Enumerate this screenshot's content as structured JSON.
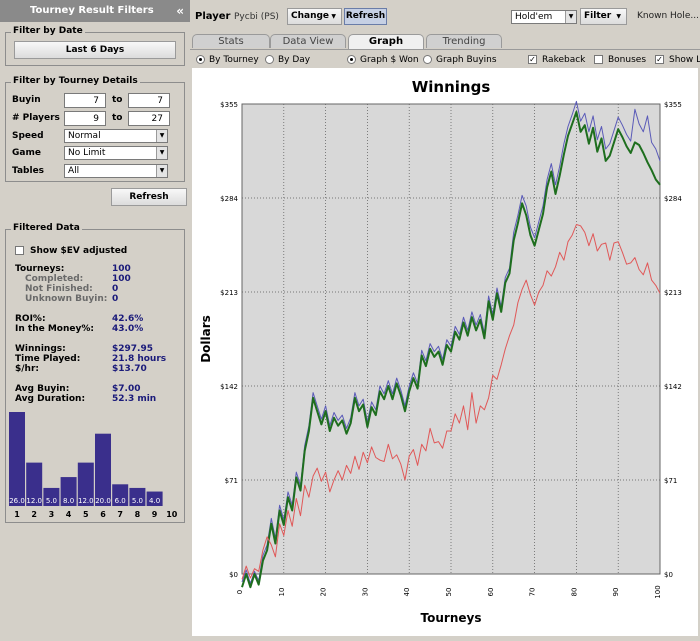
{
  "left_panel": {
    "title": "Tourney Result Filters",
    "collapse": "«",
    "filter_by_date": {
      "title": "Filter by Date",
      "button": "Last 6 Days"
    },
    "filter_by_details": {
      "title": "Filter by Tourney Details",
      "buyin": {
        "label": "Buyin",
        "from": "7",
        "to_label": "to",
        "to": "7"
      },
      "players": {
        "label": "# Players",
        "from": "9",
        "to_label": "to",
        "to": "27"
      },
      "speed": {
        "label": "Speed",
        "value": "Normal"
      },
      "game": {
        "label": "Game",
        "value": "No Limit"
      },
      "tables": {
        "label": "Tables",
        "value": "All"
      }
    },
    "refresh_button": "Refresh",
    "filtered_data": {
      "title": "Filtered Data",
      "ev_label": "Show $EV adjusted",
      "stats": [
        {
          "label": "Tourneys:",
          "value": "100",
          "sub": false
        },
        {
          "label": "Completed:",
          "value": "100",
          "sub": true
        },
        {
          "label": "Not Finished:",
          "value": "0",
          "sub": true
        },
        {
          "label": "Unknown Buyin:",
          "value": "0",
          "sub": true
        },
        {
          "label": "ROI%:",
          "value": "42.6%",
          "sub": false
        },
        {
          "label": "In the Money%:",
          "value": "43.0%",
          "sub": false
        },
        {
          "label": "Winnings:",
          "value": "$297.95",
          "sub": false
        },
        {
          "label": "Time Played:",
          "value": "21.8 hours",
          "sub": false
        },
        {
          "label": "$/hr:",
          "value": "$13.70",
          "sub": false
        },
        {
          "label": "Avg Buyin:",
          "value": "$7.00",
          "sub": false
        },
        {
          "label": "Avg Duration:",
          "value": "52.3 min",
          "sub": false
        }
      ]
    },
    "finish_histogram": {
      "positions": [
        "1",
        "2",
        "3",
        "4",
        "5",
        "6",
        "7",
        "8",
        "9",
        "10"
      ],
      "values": [
        26.0,
        12.0,
        5.0,
        8.0,
        12.0,
        20.0,
        6.0,
        5.0,
        4.0,
        0
      ],
      "labels": [
        "26.0",
        "12.0",
        "5.0",
        "8.0",
        "12.0",
        "20.0",
        "6.0",
        "5.0",
        "4.0",
        ""
      ],
      "bar_color": "#3a2f8c"
    }
  },
  "toolbar": {
    "player_label": "Player",
    "player_value": "Pycbi (PS)",
    "change_button": "Change",
    "refresh_button": "Refresh",
    "game_select": "Hold'em",
    "filter_button": "Filter",
    "known_holes": "Known Hole..."
  },
  "tabs": [
    "Stats",
    "Data View",
    "Graph",
    "Trending"
  ],
  "active_tab": "Graph",
  "options": {
    "by_tourney": "By Tourney",
    "by_day": "By Day",
    "graph_won": "Graph $ Won",
    "graph_buyins": "Graph Buyins",
    "rakeback": "Rakeback",
    "bonuses": "Bonuses",
    "show": "Show L"
  },
  "chart_data": {
    "type": "line",
    "title": "Winnings",
    "xlabel": "Tourneys",
    "ylabel": "Dollars",
    "x_ticks": [
      "0",
      "10",
      "20",
      "30",
      "40",
      "50",
      "60",
      "70",
      "80",
      "90",
      "100"
    ],
    "y_ticks": [
      "$0",
      "$71",
      "$142",
      "$213",
      "$284",
      "$355"
    ],
    "xlim": [
      0,
      100
    ],
    "ylim": [
      0,
      355
    ],
    "grid": true,
    "colors": {
      "blue": "#5a5ab8",
      "green": "#1e6e1e",
      "red": "#e05858",
      "plot_bg": "#d8d8d8"
    },
    "series": [
      {
        "color": "blue",
        "values": [
          -6,
          3,
          -7,
          2,
          -5,
          14,
          22,
          42,
          27,
          52,
          41,
          62,
          52,
          77,
          67,
          97,
          112,
          137,
          127,
          117,
          127,
          112,
          122,
          116,
          120,
          110,
          118,
          137,
          127,
          132,
          115,
          130,
          124,
          142,
          136,
          146,
          136,
          148,
          139,
          127,
          142,
          152,
          144,
          169,
          161,
          174,
          168,
          172,
          162,
          177,
          172,
          187,
          181,
          194,
          184,
          198,
          188,
          196,
          182,
          210,
          196,
          216,
          202,
          224,
          231,
          258,
          271,
          286,
          278,
          262,
          254,
          266,
          278,
          298,
          310,
          294,
          308,
          325,
          338,
          347,
          357,
          342,
          348,
          334,
          346,
          328,
          338,
          321,
          325,
          335,
          345,
          339,
          332,
          327,
          351,
          340,
          334,
          346,
          326,
          321,
          312
        ]
      },
      {
        "color": "green",
        "values": [
          -10,
          0,
          -10,
          0,
          -8,
          10,
          18,
          38,
          23,
          48,
          37,
          58,
          48,
          73,
          63,
          93,
          108,
          133,
          123,
          113,
          123,
          108,
          118,
          112,
          116,
          106,
          114,
          133,
          123,
          128,
          111,
          126,
          120,
          138,
          132,
          142,
          132,
          144,
          135,
          123,
          138,
          148,
          140,
          165,
          157,
          170,
          164,
          168,
          158,
          173,
          168,
          183,
          177,
          190,
          180,
          194,
          184,
          192,
          178,
          206,
          192,
          212,
          198,
          220,
          227,
          252,
          265,
          280,
          271,
          256,
          248,
          260,
          272,
          292,
          304,
          287,
          301,
          317,
          331,
          340,
          349,
          334,
          339,
          325,
          337,
          319,
          329,
          312,
          316,
          326,
          336,
          330,
          323,
          318,
          326,
          324,
          318,
          311,
          305,
          298,
          294
        ]
      },
      {
        "color": "red",
        "values": [
          -4,
          6,
          -3,
          4,
          2,
          18,
          28,
          22,
          13,
          38,
          29,
          48,
          36,
          57,
          44,
          67,
          58,
          74,
          80,
          70,
          77,
          62,
          71,
          78,
          71,
          82,
          76,
          89,
          79,
          92,
          84,
          96,
          88,
          86,
          85,
          98,
          87,
          90,
          83,
          71,
          89,
          94,
          82,
          98,
          93,
          110,
          99,
          100,
          95,
          108,
          108,
          121,
          114,
          127,
          109,
          137,
          114,
          127,
          124,
          133,
          150,
          147,
          158,
          170,
          180,
          188,
          205,
          215,
          222,
          211,
          203,
          213,
          218,
          229,
          225,
          232,
          243,
          237,
          251,
          256,
          264,
          263,
          258,
          248,
          257,
          244,
          249,
          250,
          237,
          250,
          251,
          243,
          234,
          235,
          239,
          230,
          226,
          235,
          222,
          218,
          212
        ]
      }
    ]
  }
}
